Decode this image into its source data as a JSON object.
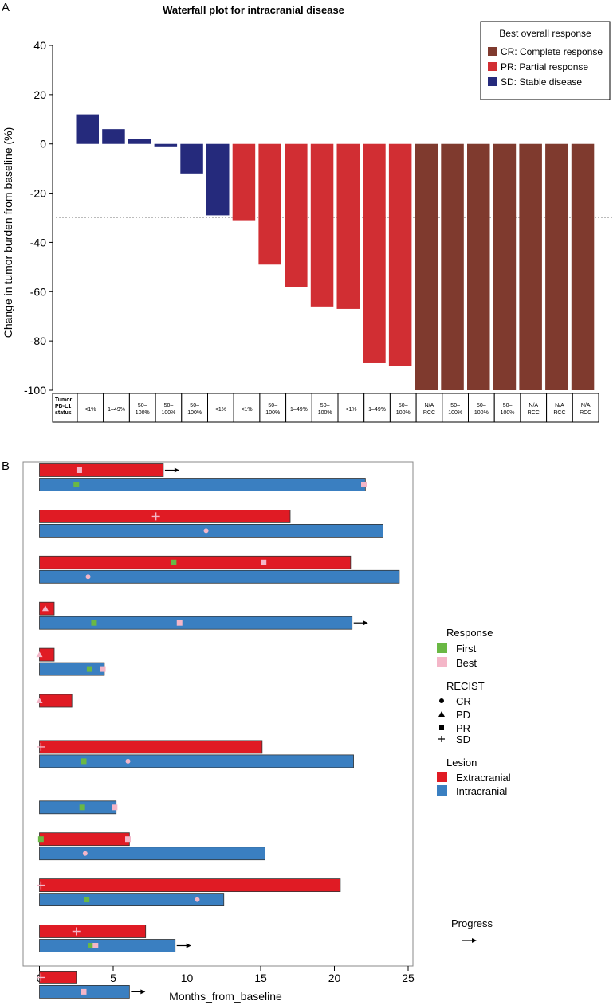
{
  "panel_a": {
    "letter": "A",
    "legend_title": "Best overall response",
    "pdl1_row_label": [
      "Tumor",
      "PD-L1",
      "status"
    ],
    "pdl1_status": [
      [
        "<1%"
      ],
      [
        "1–49%"
      ],
      [
        "50–",
        "100%"
      ],
      [
        "50–",
        "100%"
      ],
      [
        "50–",
        "100%"
      ],
      [
        "<1%"
      ],
      [
        "<1%"
      ],
      [
        "50–",
        "100%"
      ],
      [
        "1–49%"
      ],
      [
        "50–",
        "100%"
      ],
      [
        "<1%"
      ],
      [
        "1–49%"
      ],
      [
        "50–",
        "100%"
      ],
      [
        "N/A",
        "RCC"
      ],
      [
        "50–",
        "100%"
      ],
      [
        "50–",
        "100%"
      ],
      [
        "50–",
        "100%"
      ],
      [
        "N/A",
        "RCC"
      ],
      [
        "N/A",
        "RCC"
      ],
      [
        "N/A",
        "RCC"
      ]
    ]
  },
  "panel_b": {
    "letter": "B",
    "legend": {
      "response_title": "Response",
      "response_items": [
        {
          "label": "First",
          "color": "#6ab844"
        },
        {
          "label": "Best",
          "color": "#f4b6c8"
        }
      ],
      "recist_title": "RECIST",
      "recist_items": [
        {
          "label": "CR",
          "symbol": "circle"
        },
        {
          "label": "PD",
          "symbol": "triangle"
        },
        {
          "label": "PR",
          "symbol": "square"
        },
        {
          "label": "SD",
          "symbol": "plus"
        }
      ],
      "lesion_title": "Lesion",
      "lesion_items": [
        {
          "label": "Extracranial",
          "color": "#e01b24"
        },
        {
          "label": "Intracranial",
          "color": "#3a7fc1"
        }
      ],
      "progress_label": "Progress"
    }
  },
  "chart_data": [
    {
      "type": "bar",
      "title": "Waterfall plot for intracranial disease",
      "ylabel": "Change in tumor burden from baseline (%)",
      "xlabel": "",
      "ylim": [
        -100,
        40
      ],
      "yticks": [
        40,
        20,
        0,
        -20,
        -40,
        -60,
        -80,
        -100
      ],
      "reference_line": -30,
      "values": [
        12,
        6,
        2,
        -1,
        -12,
        -29,
        -31,
        -49,
        -58,
        -66,
        -67,
        -89,
        -90,
        -100,
        -100,
        -100,
        -100,
        -100,
        -100,
        -100
      ],
      "response": [
        "SD",
        "SD",
        "SD",
        "SD",
        "SD",
        "SD",
        "PR",
        "PR",
        "PR",
        "PR",
        "PR",
        "PR",
        "PR",
        "CR",
        "CR",
        "CR",
        "CR",
        "CR",
        "CR",
        "CR"
      ],
      "legend": [
        {
          "key": "CR",
          "label": "CR: Complete response",
          "color": "#7f3a2e"
        },
        {
          "key": "PR",
          "label": "PR: Partial response",
          "color": "#d12e33"
        },
        {
          "key": "SD",
          "label": "SD: Stable disease",
          "color": "#252a7c"
        }
      ]
    },
    {
      "type": "bar",
      "subtype": "swimmer",
      "title": "",
      "xlabel": "Months_from_baseline",
      "ylabel": "",
      "xlim": [
        0,
        25
      ],
      "xticks": [
        0,
        5,
        10,
        15,
        20,
        25
      ],
      "patients": [
        {
          "ext": {
            "end": 8.4,
            "arrow": true,
            "markers": [
              {
                "t": 2.7,
                "shape": "square",
                "type": "Best"
              }
            ]
          },
          "intra": {
            "end": 22.1,
            "arrow": false,
            "markers": [
              {
                "t": 2.5,
                "shape": "square",
                "type": "First"
              },
              {
                "t": 22.0,
                "shape": "square",
                "type": "Best"
              }
            ]
          }
        },
        {
          "ext": {
            "end": 17.0,
            "arrow": false,
            "markers": [
              {
                "t": 7.9,
                "shape": "plus",
                "type": "Best"
              }
            ]
          },
          "intra": {
            "end": 23.3,
            "arrow": false,
            "markers": [
              {
                "t": 11.3,
                "shape": "circle",
                "type": "Best"
              }
            ]
          }
        },
        {
          "ext": {
            "end": 21.1,
            "arrow": false,
            "markers": [
              {
                "t": 9.1,
                "shape": "square",
                "type": "First"
              },
              {
                "t": 15.2,
                "shape": "square",
                "type": "Best"
              }
            ]
          },
          "intra": {
            "end": 24.4,
            "arrow": false,
            "markers": [
              {
                "t": 3.3,
                "shape": "circle",
                "type": "Best"
              }
            ]
          }
        },
        {
          "ext": {
            "end": 1.0,
            "arrow": false,
            "markers": [
              {
                "t": 0.4,
                "shape": "triangle",
                "type": "Best"
              }
            ]
          },
          "intra": {
            "end": 21.2,
            "arrow": true,
            "markers": [
              {
                "t": 3.7,
                "shape": "square",
                "type": "First"
              },
              {
                "t": 9.5,
                "shape": "square",
                "type": "Best"
              }
            ]
          }
        },
        {
          "ext": {
            "end": 1.0,
            "arrow": false,
            "markers": [
              {
                "t": 0.0,
                "shape": "triangle",
                "type": "Best"
              }
            ]
          },
          "intra": {
            "end": 4.4,
            "arrow": false,
            "markers": [
              {
                "t": 3.4,
                "shape": "square",
                "type": "First"
              },
              {
                "t": 4.3,
                "shape": "square",
                "type": "Best"
              }
            ]
          }
        },
        {
          "ext": {
            "end": 2.2,
            "arrow": false,
            "markers": [
              {
                "t": 0.0,
                "shape": "triangle",
                "type": "Best"
              }
            ]
          },
          "intra": null
        },
        {
          "ext": {
            "end": 15.1,
            "arrow": false,
            "markers": [
              {
                "t": 0.1,
                "shape": "plus",
                "type": "Best"
              }
            ]
          },
          "intra": {
            "end": 21.3,
            "arrow": false,
            "markers": [
              {
                "t": 3.0,
                "shape": "square",
                "type": "First"
              },
              {
                "t": 6.0,
                "shape": "circle",
                "type": "Best"
              }
            ]
          }
        },
        {
          "ext": null,
          "intra": {
            "end": 5.2,
            "arrow": false,
            "markers": [
              {
                "t": 2.9,
                "shape": "square",
                "type": "First"
              },
              {
                "t": 5.1,
                "shape": "square",
                "type": "Best"
              }
            ]
          }
        },
        {
          "ext": {
            "end": 6.1,
            "arrow": false,
            "markers": [
              {
                "t": 0.1,
                "shape": "square",
                "type": "First"
              },
              {
                "t": 6.0,
                "shape": "square",
                "type": "Best"
              }
            ]
          },
          "intra": {
            "end": 15.3,
            "arrow": false,
            "markers": [
              {
                "t": 3.1,
                "shape": "circle",
                "type": "Best"
              }
            ]
          }
        },
        {
          "ext": {
            "end": 20.4,
            "arrow": false,
            "markers": [
              {
                "t": 0.1,
                "shape": "plus",
                "type": "Best"
              }
            ]
          },
          "intra": {
            "end": 12.5,
            "arrow": false,
            "markers": [
              {
                "t": 3.2,
                "shape": "square",
                "type": "First"
              },
              {
                "t": 10.7,
                "shape": "circle",
                "type": "Best"
              }
            ]
          }
        },
        {
          "ext": {
            "end": 7.2,
            "arrow": false,
            "markers": [
              {
                "t": 2.5,
                "shape": "plus",
                "type": "Best"
              }
            ]
          },
          "intra": {
            "end": 9.2,
            "arrow": true,
            "markers": [
              {
                "t": 3.5,
                "shape": "square",
                "type": "First"
              },
              {
                "t": 3.8,
                "shape": "square",
                "type": "Best"
              }
            ]
          }
        },
        {
          "ext": {
            "end": 2.5,
            "arrow": false,
            "markers": [
              {
                "t": 0.1,
                "shape": "plus",
                "type": "Best"
              }
            ]
          },
          "intra": {
            "end": 6.1,
            "arrow": true,
            "markers": [
              {
                "t": 3.0,
                "shape": "square",
                "type": "Best"
              }
            ]
          }
        }
      ]
    }
  ]
}
